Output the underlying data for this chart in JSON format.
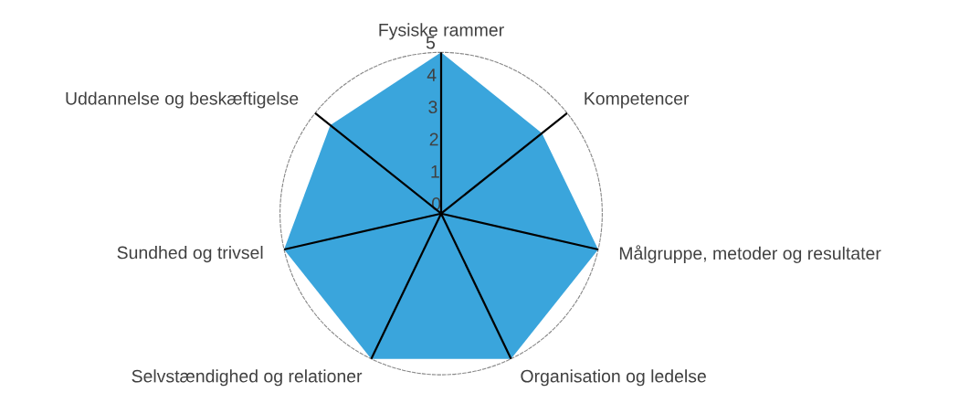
{
  "chart_data": {
    "type": "radar",
    "categories": [
      "Fysiske rammer",
      "Kompetencer",
      "Målgruppe, metoder og resultater",
      "Organisation og ledelse",
      "Selvstændighed og relationer",
      "Sundhed og trivsel",
      "Uddannelse og beskæftigelse"
    ],
    "series": [
      {
        "color": "#3aa5dc",
        "values": [
          5,
          4,
          5,
          5,
          5,
          5,
          4.4
        ]
      }
    ],
    "ylim": [
      0,
      5
    ],
    "yticks": [
      0,
      1,
      2,
      3,
      4,
      5
    ],
    "grid": "x"
  }
}
